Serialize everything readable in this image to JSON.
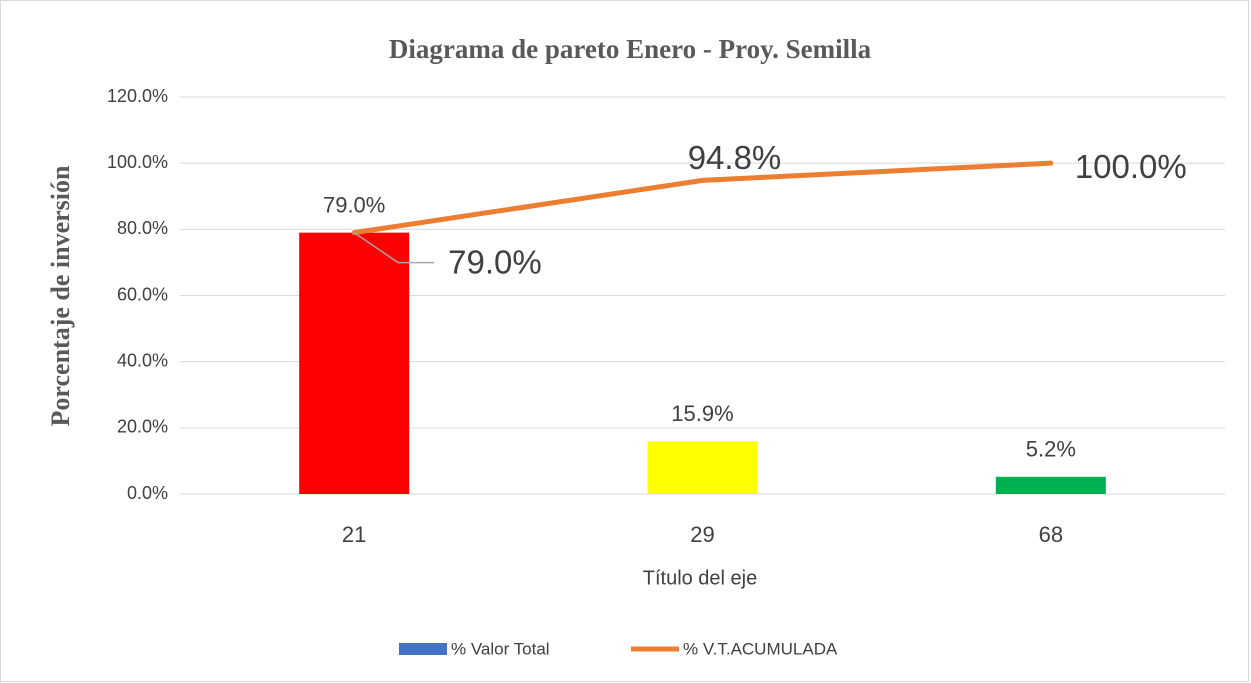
{
  "chart_data": {
    "type": "bar",
    "title": "Diagrama de pareto Enero - Proy. Semilla",
    "x_label": "Título del eje",
    "y_label": "Porcentaje de inversión",
    "categories": [
      "21",
      "29",
      "68"
    ],
    "series": [
      {
        "name": "% Valor Total",
        "type": "bar",
        "color": "#4472c4",
        "colors": [
          "#ff0000",
          "#ffff00",
          "#00b050"
        ],
        "values": [
          79.0,
          15.9,
          5.2
        ],
        "value_labels": [
          "79.0%",
          "15.9%",
          "5.2%"
        ]
      },
      {
        "name": "% V.T.ACUMULADA",
        "type": "line",
        "color": "#ed7d31",
        "values": [
          79.0,
          94.8,
          100.0
        ],
        "value_labels": [
          "79.0%",
          "94.8%",
          "100.0%"
        ]
      }
    ],
    "ylim": [
      0,
      120
    ],
    "yticks": [
      {
        "value": 0,
        "label": "0.0%"
      },
      {
        "value": 20,
        "label": "20.0%"
      },
      {
        "value": 40,
        "label": "40.0%"
      },
      {
        "value": 60,
        "label": "60.0%"
      },
      {
        "value": 80,
        "label": "80.0%"
      },
      {
        "value": 100,
        "label": "100.0%"
      },
      {
        "value": 120,
        "label": "120.0%"
      }
    ],
    "grid": true,
    "legend": "bottom"
  }
}
